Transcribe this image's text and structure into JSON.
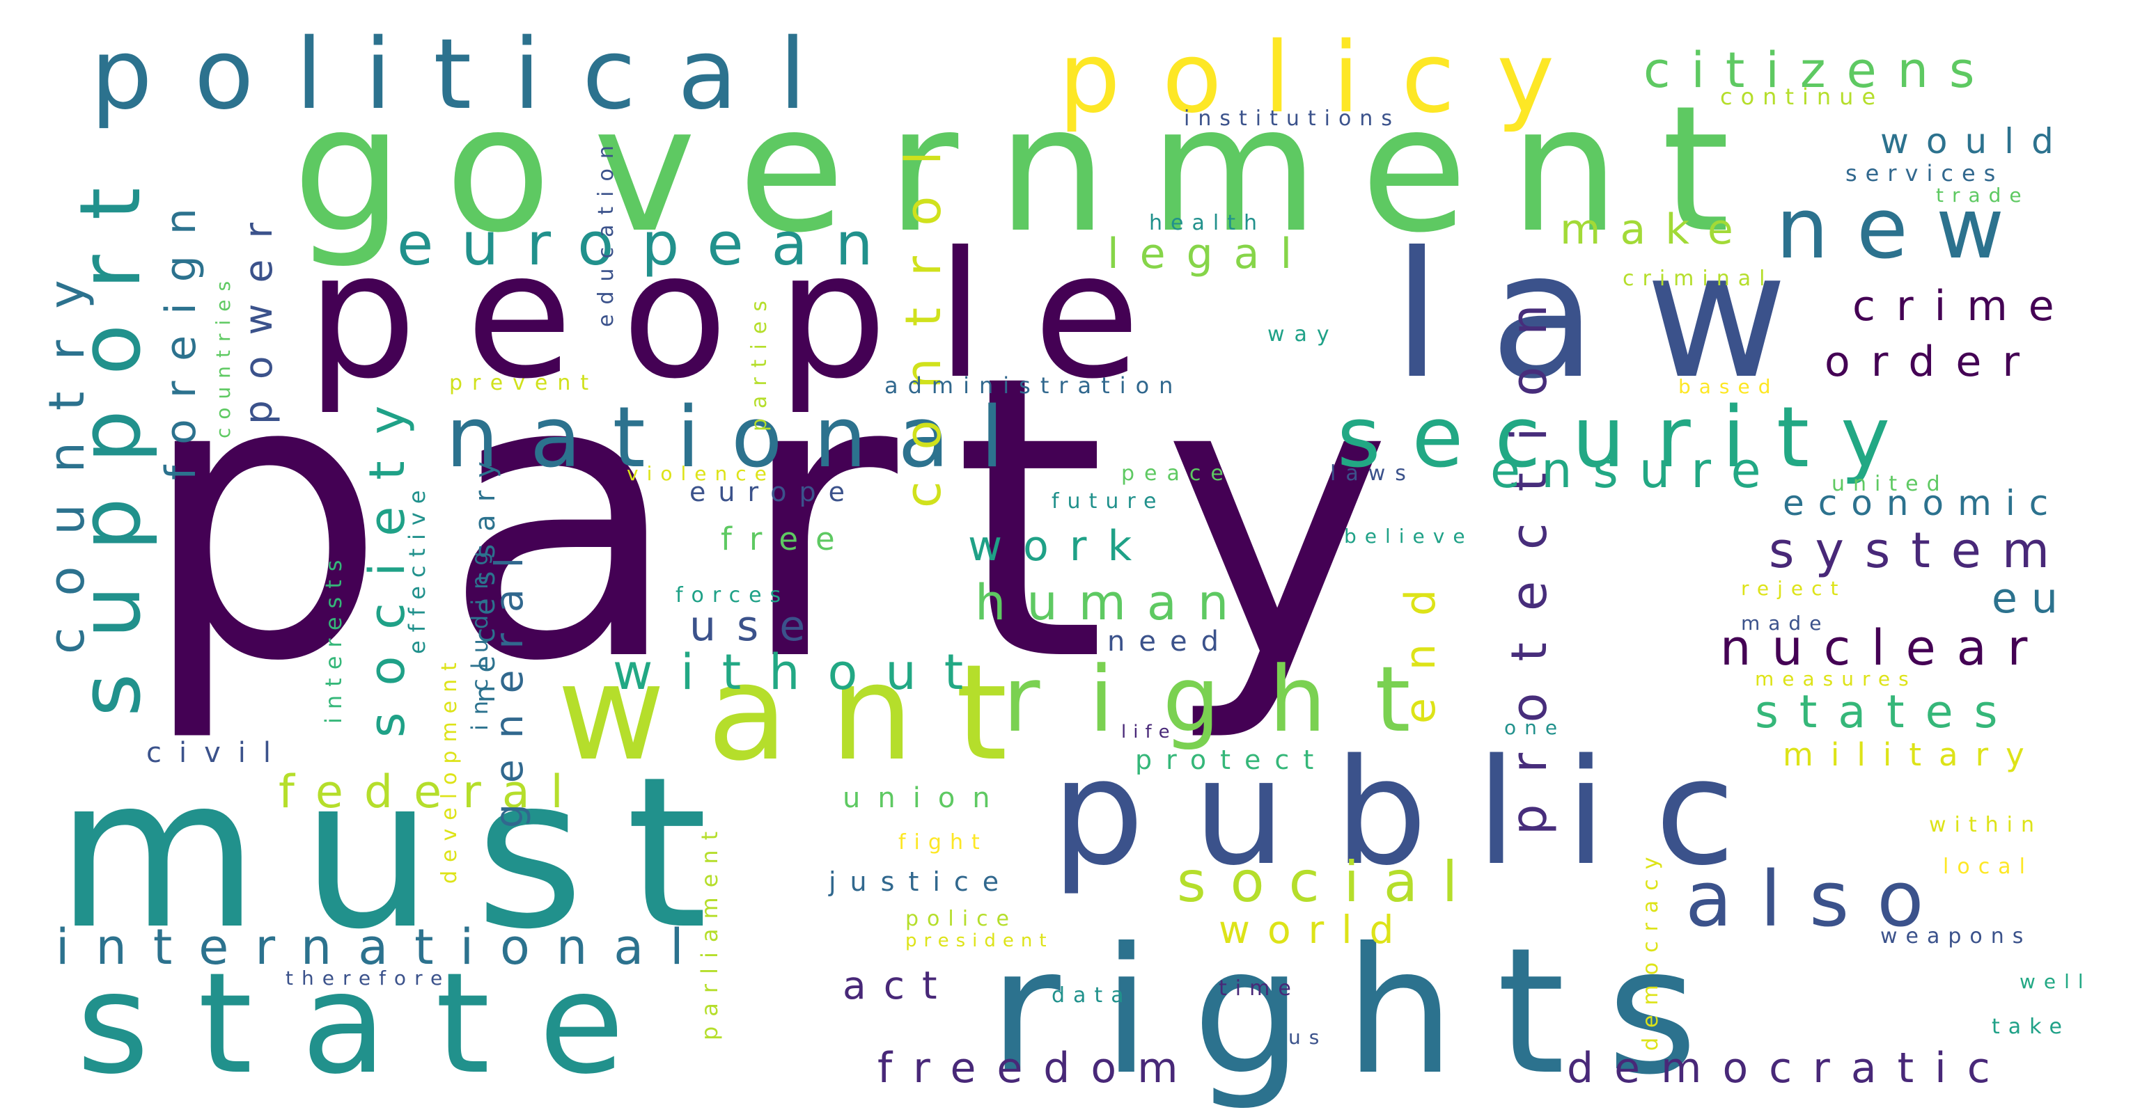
{
  "palette": {
    "deep_purple": "#440154",
    "purple": "#482878",
    "indigo": "#3e4a89",
    "blue": "#31688e",
    "teal": "#26828e",
    "green_teal": "#1f9e89",
    "green": "#35b779",
    "light_green": "#6ece58",
    "lime": "#b5de2b",
    "yellow": "#fde725"
  },
  "words": [
    {
      "id": "party",
      "text": "party",
      "color": "#440154"
    },
    {
      "id": "government",
      "text": "government",
      "color": "#5ec962"
    },
    {
      "id": "people",
      "text": "people",
      "color": "#440154"
    },
    {
      "id": "law",
      "text": "law",
      "color": "#3b528b"
    },
    {
      "id": "must",
      "text": "must",
      "color": "#21918c"
    },
    {
      "id": "rights",
      "text": "rights",
      "color": "#2c728e"
    },
    {
      "id": "state",
      "text": "state",
      "color": "#21918c"
    },
    {
      "id": "public",
      "text": "public",
      "color": "#3b528b"
    },
    {
      "id": "want",
      "text": "want",
      "color": "#b5de2b"
    },
    {
      "id": "political",
      "text": "political",
      "color": "#2c728e"
    },
    {
      "id": "policy",
      "text": "policy",
      "color": "#fde725"
    },
    {
      "id": "national",
      "text": "national",
      "color": "#2c728e"
    },
    {
      "id": "security",
      "text": "security",
      "color": "#22a884"
    },
    {
      "id": "support",
      "text": "support",
      "color": "#21918c"
    },
    {
      "id": "right",
      "text": "right",
      "color": "#7ad151"
    },
    {
      "id": "new",
      "text": "new",
      "color": "#2c728e"
    },
    {
      "id": "citizens",
      "text": "citizens",
      "color": "#5ec962"
    },
    {
      "id": "european",
      "text": "european",
      "color": "#21918c"
    },
    {
      "id": "also",
      "text": "also",
      "color": "#3b528b"
    },
    {
      "id": "international",
      "text": "international",
      "color": "#2c728e"
    },
    {
      "id": "protection",
      "text": "protection",
      "color": "#472d7b"
    },
    {
      "id": "system",
      "text": "system",
      "color": "#482878"
    },
    {
      "id": "nuclear",
      "text": "nuclear",
      "color": "#440154"
    },
    {
      "id": "ensure",
      "text": "ensure",
      "color": "#22a884"
    },
    {
      "id": "social",
      "text": "social",
      "color": "#b5de2b"
    },
    {
      "id": "country",
      "text": "country",
      "color": "#2c728e"
    },
    {
      "id": "society",
      "text": "society",
      "color": "#1fa187"
    },
    {
      "id": "without",
      "text": "without",
      "color": "#22a884"
    },
    {
      "id": "freedom",
      "text": "freedom",
      "color": "#482878"
    },
    {
      "id": "democratic",
      "text": "democratic",
      "color": "#482878"
    },
    {
      "id": "human",
      "text": "human",
      "color": "#5ec962"
    },
    {
      "id": "control",
      "text": "control",
      "color": "#d0e11c"
    },
    {
      "id": "crime",
      "text": "crime",
      "color": "#440154"
    },
    {
      "id": "order",
      "text": "order",
      "color": "#440154"
    },
    {
      "id": "states",
      "text": "states",
      "color": "#35b779"
    },
    {
      "id": "federal",
      "text": "federal",
      "color": "#b5de2b"
    },
    {
      "id": "legal",
      "text": "legal",
      "color": "#86d549"
    },
    {
      "id": "world",
      "text": "world",
      "color": "#dde318"
    },
    {
      "id": "work",
      "text": "work",
      "color": "#1fa187"
    },
    {
      "id": "economic",
      "text": "economic",
      "color": "#2c728e"
    },
    {
      "id": "make",
      "text": "make",
      "color": "#a2da37"
    },
    {
      "id": "foreign",
      "text": "foreign",
      "color": "#2c728e"
    },
    {
      "id": "power",
      "text": "power",
      "color": "#3b528b"
    },
    {
      "id": "end",
      "text": "end",
      "color": "#dde318"
    },
    {
      "id": "use",
      "text": "use",
      "color": "#3b528b"
    },
    {
      "id": "eu",
      "text": "eu",
      "color": "#2c728e"
    },
    {
      "id": "military",
      "text": "military",
      "color": "#dde318"
    },
    {
      "id": "general",
      "text": "general",
      "color": "#31688e"
    },
    {
      "id": "necessary",
      "text": "necessary",
      "color": "#2c728e"
    },
    {
      "id": "act",
      "text": "act",
      "color": "#482878"
    },
    {
      "id": "would",
      "text": "would",
      "color": "#2c728e"
    },
    {
      "id": "free",
      "text": "free",
      "color": "#5ec962"
    },
    {
      "id": "civil",
      "text": "civil",
      "color": "#3b528b"
    },
    {
      "id": "union",
      "text": "union",
      "color": "#5ec962"
    },
    {
      "id": "protect",
      "text": "protect",
      "color": "#35b779"
    },
    {
      "id": "need",
      "text": "need",
      "color": "#3b528b"
    },
    {
      "id": "justice",
      "text": "justice",
      "color": "#31688e"
    },
    {
      "id": "europe",
      "text": "europe",
      "color": "#3b528b"
    },
    {
      "id": "effective",
      "text": "effective",
      "color": "#21918c"
    },
    {
      "id": "interests",
      "text": "interests",
      "color": "#35b779"
    },
    {
      "id": "including",
      "text": "including",
      "color": "#2c728e"
    },
    {
      "id": "development",
      "text": "development",
      "color": "#dde318"
    },
    {
      "id": "parliament",
      "text": "parliament",
      "color": "#b5de2b"
    },
    {
      "id": "parties",
      "text": "parties",
      "color": "#b5de2b"
    },
    {
      "id": "education",
      "text": "education",
      "color": "#3b528b"
    },
    {
      "id": "countries",
      "text": "countries",
      "color": "#5ec962"
    },
    {
      "id": "democracy",
      "text": "democracy",
      "color": "#dde318"
    },
    {
      "id": "administration",
      "text": "administration",
      "color": "#31688e"
    },
    {
      "id": "institutions",
      "text": "institutions",
      "color": "#3b528b"
    },
    {
      "id": "continue",
      "text": "continue",
      "color": "#b5de2b"
    },
    {
      "id": "services",
      "text": "services",
      "color": "#31688e"
    },
    {
      "id": "trade",
      "text": "trade",
      "color": "#5ec962"
    },
    {
      "id": "health",
      "text": "health",
      "color": "#21918c"
    },
    {
      "id": "criminal",
      "text": "criminal",
      "color": "#b5de2b"
    },
    {
      "id": "way",
      "text": "way",
      "color": "#1fa187"
    },
    {
      "id": "based",
      "text": "based",
      "color": "#fde725"
    },
    {
      "id": "prevent",
      "text": "prevent",
      "color": "#d0e11c"
    },
    {
      "id": "peace",
      "text": "peace",
      "color": "#5ec962"
    },
    {
      "id": "laws",
      "text": "laws",
      "color": "#3b528b"
    },
    {
      "id": "violence",
      "text": "violence",
      "color": "#dde318"
    },
    {
      "id": "united",
      "text": "united",
      "color": "#5ec962"
    },
    {
      "id": "future",
      "text": "future",
      "color": "#21918c"
    },
    {
      "id": "believe",
      "text": "believe",
      "color": "#1fa187"
    },
    {
      "id": "forces",
      "text": "forces",
      "color": "#1fa187"
    },
    {
      "id": "reject",
      "text": "reject",
      "color": "#dde318"
    },
    {
      "id": "made",
      "text": "made",
      "color": "#3b528b"
    },
    {
      "id": "measures",
      "text": "measures",
      "color": "#dde318"
    },
    {
      "id": "one",
      "text": "one",
      "color": "#21918c"
    },
    {
      "id": "life",
      "text": "life",
      "color": "#482878"
    },
    {
      "id": "fight",
      "text": "fight",
      "color": "#fde725"
    },
    {
      "id": "within",
      "text": "within",
      "color": "#dde318"
    },
    {
      "id": "local",
      "text": "local",
      "color": "#fde725"
    },
    {
      "id": "police",
      "text": "police",
      "color": "#b5de2b"
    },
    {
      "id": "president",
      "text": "president",
      "color": "#dde318"
    },
    {
      "id": "therefore",
      "text": "therefore",
      "color": "#3b528b"
    },
    {
      "id": "weapons",
      "text": "weapons",
      "color": "#3b528b"
    },
    {
      "id": "well",
      "text": "well",
      "color": "#22a884"
    },
    {
      "id": "data",
      "text": "data",
      "color": "#21918c"
    },
    {
      "id": "time",
      "text": "time",
      "color": "#482878"
    },
    {
      "id": "take",
      "text": "take",
      "color": "#1fa187"
    },
    {
      "id": "us",
      "text": "us",
      "color": "#3b528b"
    }
  ]
}
